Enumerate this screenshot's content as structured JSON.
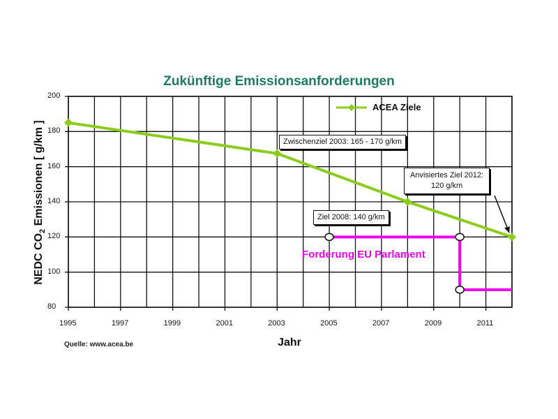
{
  "chart_data": {
    "type": "line",
    "title": "Zukünftige Emissionsanforderungen",
    "xlabel": "Jahr",
    "ylabel": "NEDC CO2 Emissionen [ g/km ]",
    "ylabel_parts": {
      "pre": "NEDC CO",
      "sub": "2",
      "post": " Emissionen [ g/km ]"
    },
    "xlim": [
      1995,
      2012
    ],
    "ylim": [
      80,
      200
    ],
    "xticks": [
      1995,
      1997,
      1999,
      2001,
      2003,
      2005,
      2007,
      2009,
      2011
    ],
    "yticks": [
      80,
      100,
      120,
      140,
      160,
      180,
      200
    ],
    "grid": true,
    "legend_position": "upper right inside",
    "series": [
      {
        "name": "ACEA Ziele",
        "color": "#8ccc1e",
        "marker": "diamond",
        "x": [
          1995,
          2003,
          2008,
          2012
        ],
        "values": [
          185,
          167.5,
          140,
          120
        ]
      },
      {
        "name": "Forderung EU Parlament",
        "color": "#ee00ee",
        "marker": "open-circle",
        "x": [
          2005,
          2010,
          2010,
          2012
        ],
        "values": [
          120,
          120,
          90,
          90
        ],
        "marker_indices": [
          0,
          1,
          2
        ]
      }
    ],
    "annotations": [
      {
        "text": "Zwischenziel 2003: 165 - 170 g/km",
        "x": 2003,
        "y": 167.5
      },
      {
        "text": "Ziel 2008: 140 g/km",
        "x": 2008,
        "y": 140
      },
      {
        "text": "Anvisiertes Ziel 2012:\n120 g/km",
        "lines": [
          "Anvisiertes Ziel 2012:",
          "120 g/km"
        ],
        "x": 2012,
        "y": 120,
        "arrow": true
      },
      {
        "text": "Forderung EU Parlament",
        "color": "#ee00ee"
      }
    ],
    "source": "Quelle: www.acea.be"
  },
  "labels": {
    "title": "Zukünftige Emissionsanforderungen",
    "xlabel": "Jahr",
    "ylabel_pre": "NEDC CO",
    "ylabel_sub": "2",
    "ylabel_post": " Emissionen [ g/km ]",
    "legend": "ACEA Ziele",
    "ann_2003": "Zwischenziel 2003: 165 - 170 g/km",
    "ann_2008": "Ziel 2008: 140 g/km",
    "ann_2012_l1": "Anvisiertes Ziel 2012:",
    "ann_2012_l2": "120 g/km",
    "eu_label": "Forderung EU Parlament",
    "source": "Quelle: www.acea.be"
  }
}
